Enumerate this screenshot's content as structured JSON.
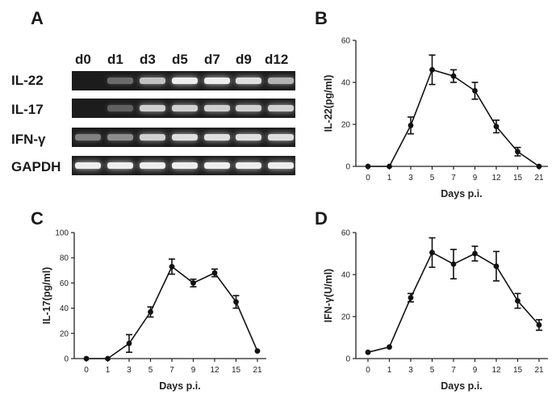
{
  "panels": {
    "a": "A",
    "b": "B",
    "c": "C",
    "d": "D"
  },
  "gel": {
    "lanes": [
      "d0",
      "d1",
      "d3",
      "d5",
      "d7",
      "d9",
      "d12"
    ],
    "rows": [
      {
        "name": "IL-22",
        "intensity": [
          0.0,
          0.45,
          0.8,
          0.95,
          0.95,
          0.9,
          0.75
        ]
      },
      {
        "name": "IL-17",
        "intensity": [
          0.0,
          0.4,
          0.85,
          0.85,
          0.85,
          0.85,
          0.85
        ]
      },
      {
        "name": "IFN-γ",
        "intensity": [
          0.55,
          0.6,
          0.85,
          0.9,
          0.9,
          0.9,
          0.9
        ]
      },
      {
        "name": "GAPDH",
        "intensity": [
          0.95,
          0.95,
          0.95,
          0.95,
          0.95,
          0.95,
          0.95
        ]
      }
    ]
  },
  "chart_data": [
    {
      "panel": "B",
      "type": "line",
      "categories": [
        "0",
        "1",
        "3",
        "5",
        "7",
        "9",
        "12",
        "15",
        "21"
      ],
      "values": [
        0,
        0,
        19.5,
        46,
        43,
        36,
        19,
        7,
        0
      ],
      "errors": [
        0,
        0,
        4,
        7,
        3,
        4,
        3,
        2,
        0
      ],
      "xlabel": "Days p.i.",
      "ylabel": "IL-22(pg/ml)",
      "ylim": [
        0,
        60
      ],
      "yticks": [
        0,
        20,
        40,
        60
      ]
    },
    {
      "panel": "C",
      "type": "line",
      "categories": [
        "0",
        "1",
        "3",
        "5",
        "7",
        "9",
        "12",
        "15",
        "21"
      ],
      "values": [
        0,
        0,
        12,
        37,
        73,
        60,
        68,
        45,
        6
      ],
      "errors": [
        0,
        0,
        7,
        4,
        6,
        3,
        3,
        5,
        0
      ],
      "xlabel": "Days p.i.",
      "ylabel": "IL-17(pg/ml)",
      "ylim": [
        0,
        100
      ],
      "yticks": [
        0,
        20,
        40,
        60,
        80,
        100
      ]
    },
    {
      "panel": "D",
      "type": "line",
      "categories": [
        "0",
        "1",
        "3",
        "5",
        "7",
        "9",
        "12",
        "15",
        "21"
      ],
      "values": [
        3,
        5.5,
        29,
        50.5,
        45,
        50,
        44,
        27.5,
        16
      ],
      "errors": [
        0,
        0,
        2,
        7,
        7,
        3.5,
        7,
        3.5,
        2.5
      ],
      "xlabel": "Days p.i.",
      "ylabel": "IFN-γ(U/ml)",
      "ylim": [
        0,
        60
      ],
      "yticks": [
        0,
        20,
        40,
        60
      ]
    }
  ]
}
